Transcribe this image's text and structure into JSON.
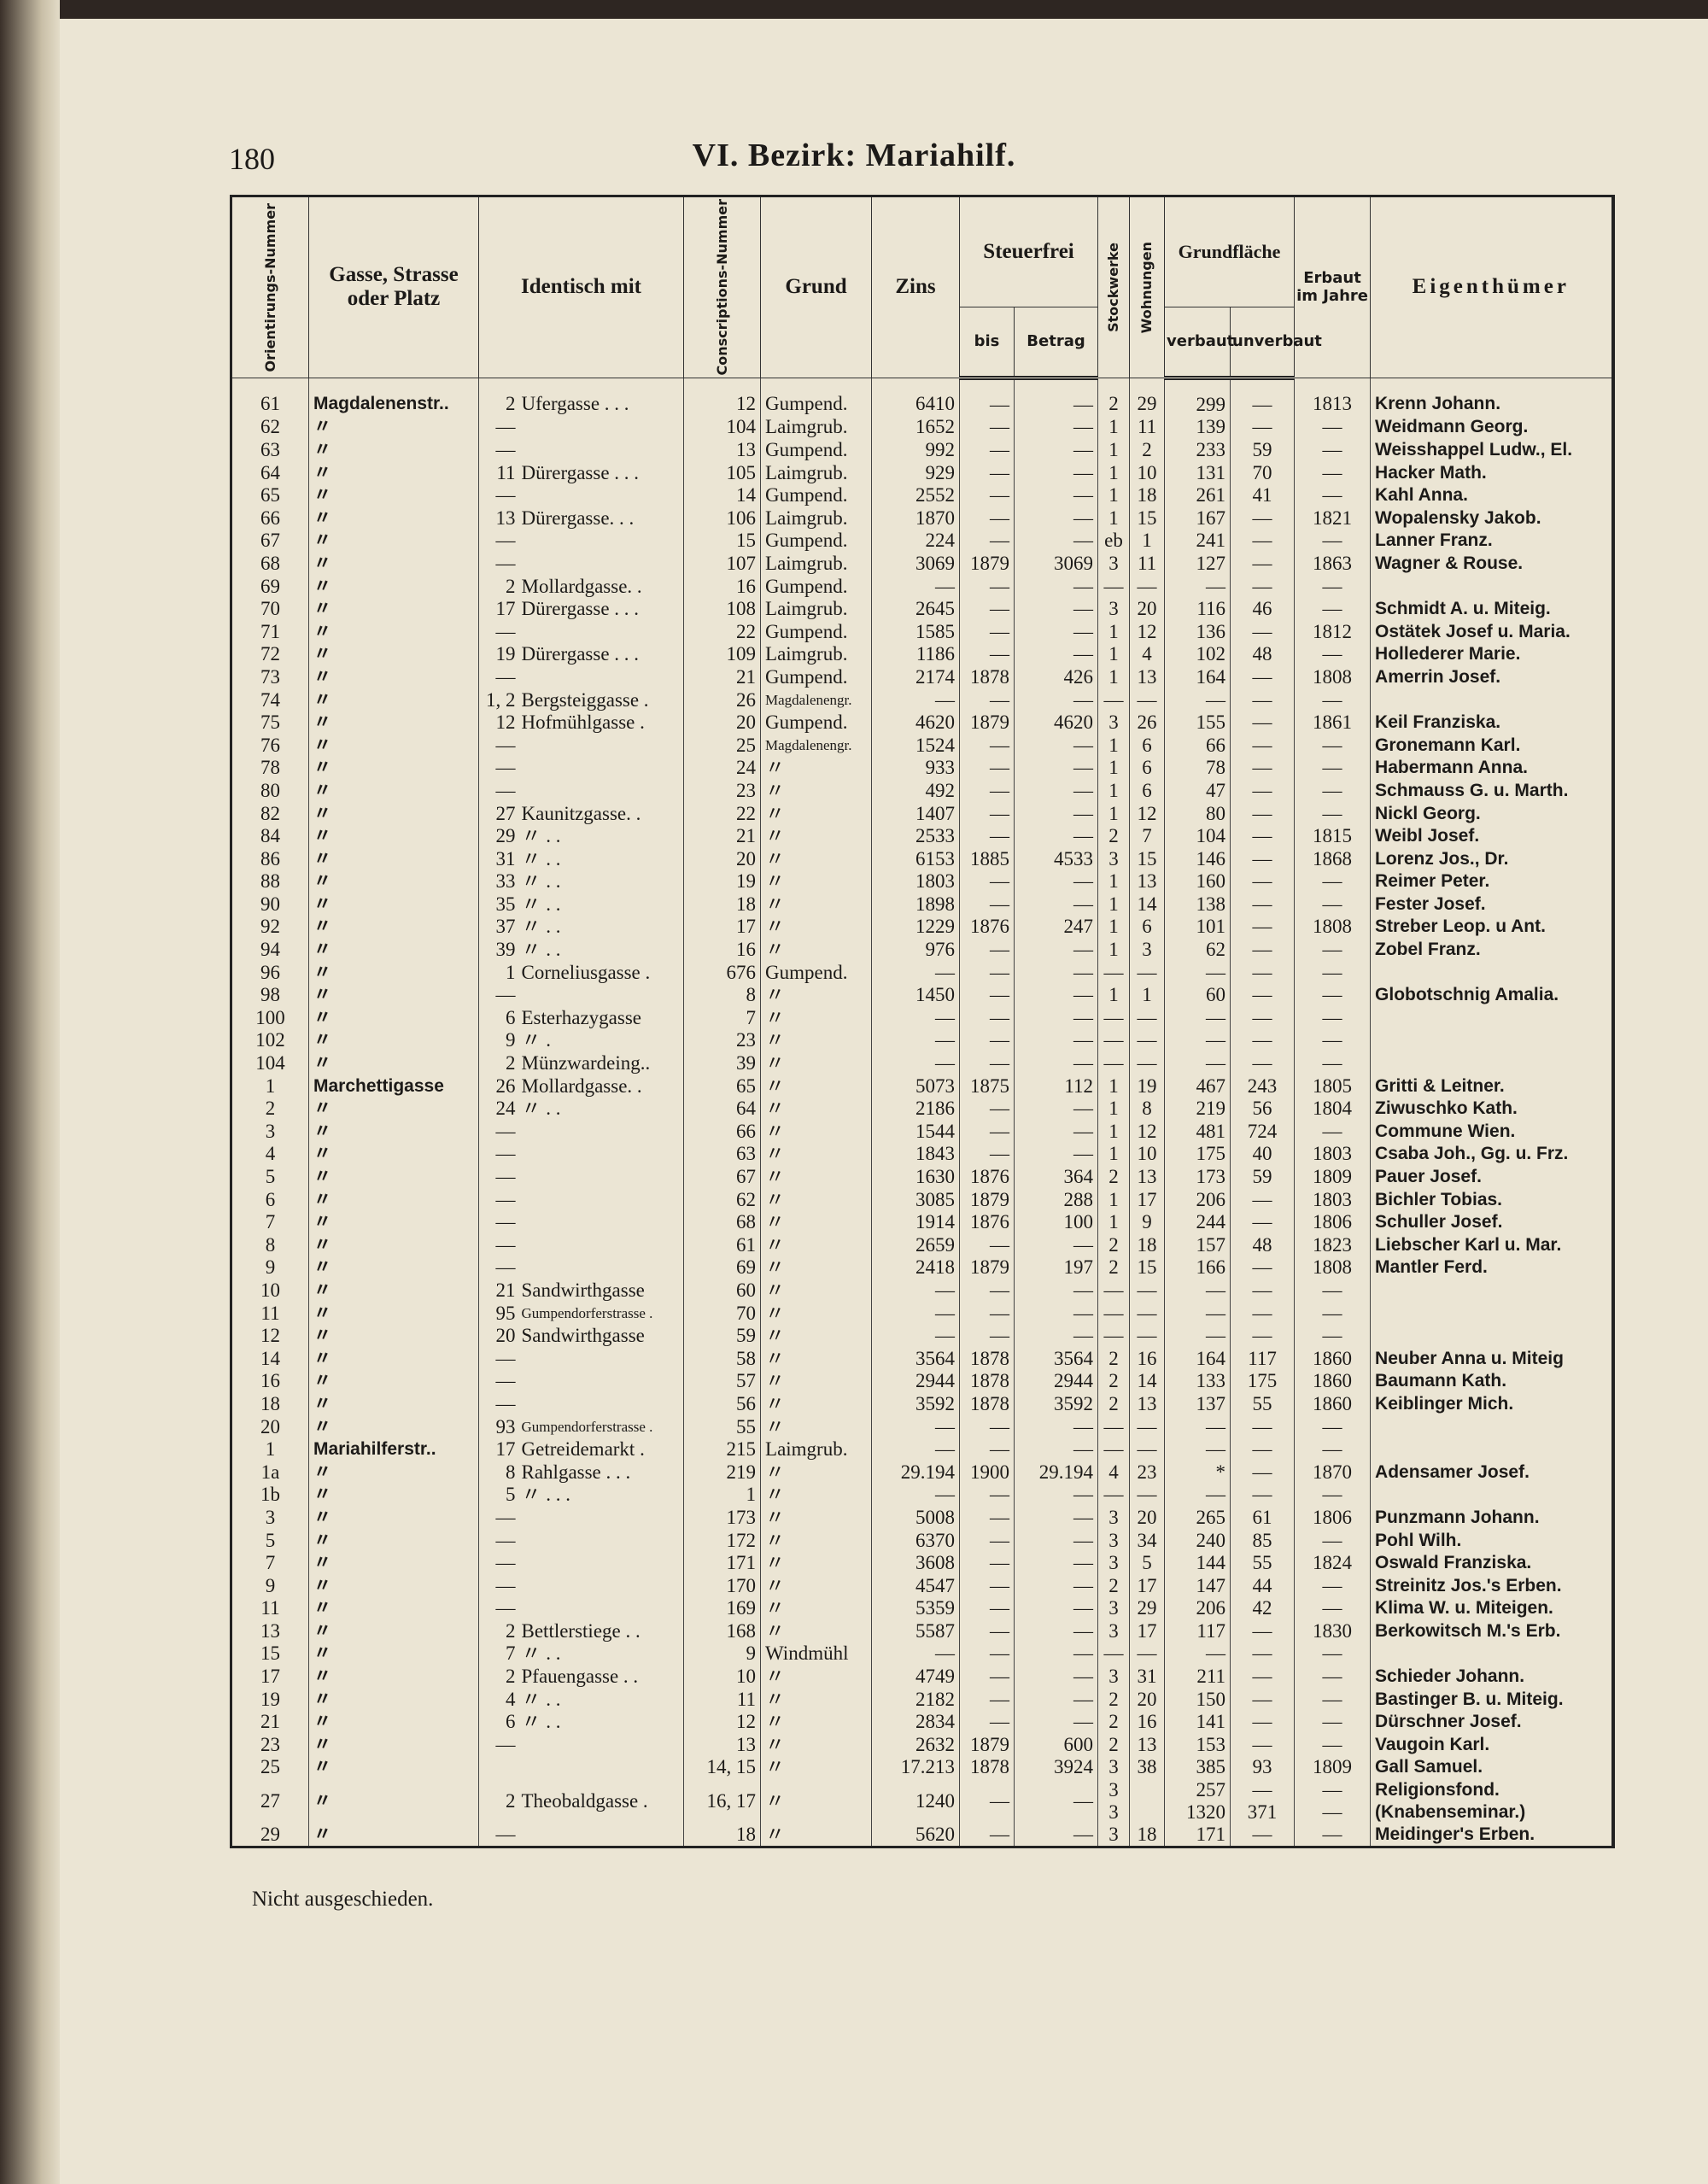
{
  "page_number": "180",
  "title": "VI. Bezirk: Mariahilf.",
  "header": {
    "orient": "Orientirungs-Nummer",
    "street": "Gasse, Strasse oder Platz",
    "identisch": "Identisch mit",
    "consc": "Conscriptions-Nummer",
    "grund": "Grund",
    "zins": "Zins",
    "steuerfrei": "Steuerfrei",
    "bis": "bis",
    "betrag": "Betrag",
    "stock": "Stockwerke",
    "wohn": "Wohnungen",
    "grundflaeche": "Grundfläche",
    "verbaut": "verbaut",
    "unverbaut": "unverbaut",
    "erbaut": "Erbaut im Jahre",
    "owner": "Eigenthümer"
  },
  "rows": [
    [
      "61",
      "Magdalenenstr..",
      "2",
      "Ufergasse . . .",
      "12",
      "Gumpend.",
      "6410",
      "—",
      "—",
      "2",
      "29",
      "299",
      "—",
      "1813",
      "Krenn Johann."
    ],
    [
      "62",
      "〃",
      "—",
      null,
      "104",
      "Laimgrub.",
      "1652",
      "—",
      "—",
      "1",
      "11",
      "139",
      "—",
      "—",
      "Weidmann Georg."
    ],
    [
      "63",
      "〃",
      "—",
      null,
      "13",
      "Gumpend.",
      "992",
      "—",
      "—",
      "1",
      "2",
      "233",
      "59",
      "—",
      "Weisshappel Ludw., El."
    ],
    [
      "64",
      "〃",
      "11",
      "Dürergasse . . .",
      "105",
      "Laimgrub.",
      "929",
      "—",
      "—",
      "1",
      "10",
      "131",
      "70",
      "—",
      "Hacker Math."
    ],
    [
      "65",
      "〃",
      "—",
      null,
      "14",
      "Gumpend.",
      "2552",
      "—",
      "—",
      "1",
      "18",
      "261",
      "41",
      "—",
      "Kahl Anna."
    ],
    [
      "66",
      "〃",
      "13",
      "Dürergasse. . .",
      "106",
      "Laimgrub.",
      "1870",
      "—",
      "—",
      "1",
      "15",
      "167",
      "—",
      "1821",
      "Wopalensky Jakob."
    ],
    [
      "67",
      "〃",
      "—",
      null,
      "15",
      "Gumpend.",
      "224",
      "—",
      "—",
      "eb",
      "1",
      "241",
      "—",
      "—",
      "Lanner Franz."
    ],
    [
      "68",
      "〃",
      "—",
      null,
      "107",
      "Laimgrub.",
      "3069",
      "1879",
      "3069",
      "3",
      "11",
      "127",
      "—",
      "1863",
      "Wagner & Rouse."
    ],
    [
      "69",
      "〃",
      "2",
      "Mollardgasse. .",
      "16",
      "Gumpend.",
      "—",
      "—",
      "—",
      "—",
      "—",
      "—",
      "—",
      "—",
      null
    ],
    [
      "70",
      "〃",
      "17",
      "Dürergasse . . .",
      "108",
      "Laimgrub.",
      "2645",
      "—",
      "—",
      "3",
      "20",
      "116",
      "46",
      "—",
      "Schmidt A. u. Miteig."
    ],
    [
      "71",
      "〃",
      "—",
      null,
      "22",
      "Gumpend.",
      "1585",
      "—",
      "—",
      "1",
      "12",
      "136",
      "—",
      "1812",
      "Ostätek Josef u. Maria."
    ],
    [
      "72",
      "〃",
      "19",
      "Dürergasse . . .",
      "109",
      "Laimgrub.",
      "1186",
      "—",
      "—",
      "1",
      "4",
      "102",
      "48",
      "—",
      "Hollederer Marie."
    ],
    [
      "73",
      "〃",
      "—",
      null,
      "21",
      "Gumpend.",
      "2174",
      "1878",
      "426",
      "1",
      "13",
      "164",
      "—",
      "1808",
      "Amerrin Josef."
    ],
    [
      "74",
      "〃",
      "1, 2",
      "Bergsteiggasse .",
      "26",
      "Magdalenengr.",
      "—",
      "—",
      "—",
      "—",
      "—",
      "—",
      "—",
      "—",
      null
    ],
    [
      "75",
      "〃",
      "12",
      "Hofmühlgasse .",
      "20",
      "Gumpend.",
      "4620",
      "1879",
      "4620",
      "3",
      "26",
      "155",
      "—",
      "1861",
      "Keil Franziska."
    ],
    [
      "76",
      "〃",
      "—",
      null,
      "25",
      "Magdalenengr.",
      "1524",
      "—",
      "—",
      "1",
      "6",
      "66",
      "—",
      "—",
      "Gronemann Karl."
    ],
    [
      "78",
      "〃",
      "—",
      null,
      "24",
      "〃",
      "933",
      "—",
      "—",
      "1",
      "6",
      "78",
      "—",
      "—",
      "Habermann Anna."
    ],
    [
      "80",
      "〃",
      "—",
      null,
      "23",
      "〃",
      "492",
      "—",
      "—",
      "1",
      "6",
      "47",
      "—",
      "—",
      "Schmauss G. u. Marth."
    ],
    [
      "82",
      "〃",
      "27",
      "Kaunitzgasse. .",
      "22",
      "〃",
      "1407",
      "—",
      "—",
      "1",
      "12",
      "80",
      "—",
      "—",
      "Nickl Georg."
    ],
    [
      "84",
      "〃",
      "29",
      "〃 . .",
      "21",
      "〃",
      "2533",
      "—",
      "—",
      "2",
      "7",
      "104",
      "—",
      "1815",
      "Weibl Josef."
    ],
    [
      "86",
      "〃",
      "31",
      "〃 . .",
      "20",
      "〃",
      "6153",
      "1885",
      "4533",
      "3",
      "15",
      "146",
      "—",
      "1868",
      "Lorenz Jos., Dr."
    ],
    [
      "88",
      "〃",
      "33",
      "〃 . .",
      "19",
      "〃",
      "1803",
      "—",
      "—",
      "1",
      "13",
      "160",
      "—",
      "—",
      "Reimer Peter."
    ],
    [
      "90",
      "〃",
      "35",
      "〃 . .",
      "18",
      "〃",
      "1898",
      "—",
      "—",
      "1",
      "14",
      "138",
      "—",
      "—",
      "Fester Josef."
    ],
    [
      "92",
      "〃",
      "37",
      "〃 . .",
      "17",
      "〃",
      "1229",
      "1876",
      "247",
      "1",
      "6",
      "101",
      "—",
      "1808",
      "Streber Leop. u Ant."
    ],
    [
      "94",
      "〃",
      "39",
      "〃 . .",
      "16",
      "〃",
      "976",
      "—",
      "—",
      "1",
      "3",
      "62",
      "—",
      "—",
      "Zobel Franz."
    ],
    [
      "96",
      "〃",
      "1",
      "Corneliusgasse .",
      "676",
      "Gumpend.",
      "—",
      "—",
      "—",
      "—",
      "—",
      "—",
      "—",
      "—",
      null
    ],
    [
      "98",
      "〃",
      "—",
      null,
      "8",
      "〃",
      "1450",
      "—",
      "—",
      "1",
      "1",
      "60",
      "—",
      "—",
      "Globotschnig Amalia."
    ],
    [
      "100",
      "〃",
      "6",
      "Esterhazygasse",
      "7",
      "〃",
      "—",
      "—",
      "—",
      "—",
      "—",
      "—",
      "—",
      "—",
      null
    ],
    [
      "102",
      "〃",
      "9",
      "〃 .",
      "23",
      "〃",
      "—",
      "—",
      "—",
      "—",
      "—",
      "—",
      "—",
      "—",
      null
    ],
    [
      "104",
      "〃",
      "2",
      "Münzwardeing..",
      "39",
      "〃",
      "—",
      "—",
      "—",
      "—",
      "—",
      "—",
      "—",
      "—",
      null
    ],
    [
      "1",
      "Marchettigasse",
      "26",
      "Mollardgasse. .",
      "65",
      "〃",
      "5073",
      "1875",
      "112",
      "1",
      "19",
      "467",
      "243",
      "1805",
      "Gritti & Leitner."
    ],
    [
      "2",
      "〃",
      "24",
      "〃 . .",
      "64",
      "〃",
      "2186",
      "—",
      "—",
      "1",
      "8",
      "219",
      "56",
      "1804",
      "Ziwuschko Kath."
    ],
    [
      "3",
      "〃",
      "—",
      null,
      "66",
      "〃",
      "1544",
      "—",
      "—",
      "1",
      "12",
      "481",
      "724",
      "—",
      "Commune Wien."
    ],
    [
      "4",
      "〃",
      "—",
      null,
      "63",
      "〃",
      "1843",
      "—",
      "—",
      "1",
      "10",
      "175",
      "40",
      "1803",
      "Csaba Joh., Gg. u. Frz."
    ],
    [
      "5",
      "〃",
      "—",
      null,
      "67",
      "〃",
      "1630",
      "1876",
      "364",
      "2",
      "13",
      "173",
      "59",
      "1809",
      "Pauer Josef."
    ],
    [
      "6",
      "〃",
      "—",
      null,
      "62",
      "〃",
      "3085",
      "1879",
      "288",
      "1",
      "17",
      "206",
      "—",
      "1803",
      "Bichler Tobias."
    ],
    [
      "7",
      "〃",
      "—",
      null,
      "68",
      "〃",
      "1914",
      "1876",
      "100",
      "1",
      "9",
      "244",
      "—",
      "1806",
      "Schuller Josef."
    ],
    [
      "8",
      "〃",
      "—",
      null,
      "61",
      "〃",
      "2659",
      "—",
      "—",
      "2",
      "18",
      "157",
      "48",
      "1823",
      "Liebscher Karl u. Mar."
    ],
    [
      "9",
      "〃",
      "—",
      null,
      "69",
      "〃",
      "2418",
      "1879",
      "197",
      "2",
      "15",
      "166",
      "—",
      "1808",
      "Mantler Ferd."
    ],
    [
      "10",
      "〃",
      "21",
      "Sandwirthgasse",
      "60",
      "〃",
      "—",
      "—",
      "—",
      "—",
      "—",
      "—",
      "—",
      "—",
      null
    ],
    [
      "11",
      "〃",
      "95",
      "Gumpendorferstrasse .",
      "70",
      "〃",
      "—",
      "—",
      "—",
      "—",
      "—",
      "—",
      "—",
      "—",
      null
    ],
    [
      "12",
      "〃",
      "20",
      "Sandwirthgasse",
      "59",
      "〃",
      "—",
      "—",
      "—",
      "—",
      "—",
      "—",
      "—",
      "—",
      null
    ],
    [
      "14",
      "〃",
      "—",
      null,
      "58",
      "〃",
      "3564",
      "1878",
      "3564",
      "2",
      "16",
      "164",
      "117",
      "1860",
      "Neuber Anna u. Miteig"
    ],
    [
      "16",
      "〃",
      "—",
      null,
      "57",
      "〃",
      "2944",
      "1878",
      "2944",
      "2",
      "14",
      "133",
      "175",
      "1860",
      "Baumann Kath."
    ],
    [
      "18",
      "〃",
      "—",
      null,
      "56",
      "〃",
      "3592",
      "1878",
      "3592",
      "2",
      "13",
      "137",
      "55",
      "1860",
      "Keiblinger Mich."
    ],
    [
      "20",
      "〃",
      "93",
      "Gumpendorferstrasse .",
      "55",
      "〃",
      "—",
      "—",
      "—",
      "—",
      "—",
      "—",
      "—",
      "—",
      null
    ],
    [
      "1",
      "Mariahilferstr..",
      "17",
      "Getreidemarkt .",
      "215",
      "Laimgrub.",
      "—",
      "—",
      "—",
      "—",
      "—",
      "—",
      "—",
      "—",
      null
    ],
    [
      "1a",
      "〃",
      "8",
      "Rahlgasse . . .",
      "219",
      "〃",
      "29.194",
      "1900",
      "29.194",
      "4",
      "23",
      "*",
      "—",
      "1870",
      "Adensamer Josef."
    ],
    [
      "1b",
      "〃",
      "5",
      "〃 . . .",
      "1",
      "〃",
      "—",
      "—",
      "—",
      "—",
      "—",
      "—",
      "—",
      "—",
      null
    ],
    [
      "3",
      "〃",
      "—",
      null,
      "173",
      "〃",
      "5008",
      "—",
      "—",
      "3",
      "20",
      "265",
      "61",
      "1806",
      "Punzmann Johann."
    ],
    [
      "5",
      "〃",
      "—",
      null,
      "172",
      "〃",
      "6370",
      "—",
      "—",
      "3",
      "34",
      "240",
      "85",
      "—",
      "Pohl Wilh."
    ],
    [
      "7",
      "〃",
      "—",
      null,
      "171",
      "〃",
      "3608",
      "—",
      "—",
      "3",
      "5",
      "144",
      "55",
      "1824",
      "Oswald Franziska."
    ],
    [
      "9",
      "〃",
      "—",
      null,
      "170",
      "〃",
      "4547",
      "—",
      "—",
      "2",
      "17",
      "147",
      "44",
      "—",
      "Streinitz Jos.'s Erben."
    ],
    [
      "11",
      "〃",
      "—",
      null,
      "169",
      "〃",
      "5359",
      "—",
      "—",
      "3",
      "29",
      "206",
      "42",
      "—",
      "Klima W. u. Miteigen."
    ],
    [
      "13",
      "〃",
      "2",
      "Bettlerstiege . .",
      "168",
      "〃",
      "5587",
      "—",
      "—",
      "3",
      "17",
      "117",
      "—",
      "1830",
      "Berkowitsch M.'s Erb."
    ],
    [
      "15",
      "〃",
      "7",
      "〃 . .",
      "9",
      "Windmühl",
      "—",
      "—",
      "—",
      "—",
      "—",
      "—",
      "—",
      "—",
      null
    ],
    [
      "17",
      "〃",
      "2",
      "Pfauengasse . .",
      "10",
      "〃",
      "4749",
      "—",
      "—",
      "3",
      "31",
      "211",
      "—",
      "—",
      "Schieder Johann."
    ],
    [
      "19",
      "〃",
      "4",
      "〃 . .",
      "11",
      "〃",
      "2182",
      "—",
      "—",
      "2",
      "20",
      "150",
      "—",
      "—",
      "Bastinger B. u. Miteig."
    ],
    [
      "21",
      "〃",
      "6",
      "〃 . .",
      "12",
      "〃",
      "2834",
      "—",
      "—",
      "2",
      "16",
      "141",
      "—",
      "—",
      "Dürschner Josef."
    ],
    [
      "23",
      "〃",
      "—",
      null,
      "13",
      "〃",
      "2632",
      "1879",
      "600",
      "2",
      "13",
      "153",
      "—",
      "—",
      "Vaugoin Karl."
    ],
    [
      "25",
      "〃",
      null,
      null,
      "14, 15",
      "〃",
      "17.213",
      "1878",
      "3924",
      "3",
      "38",
      "385",
      "93",
      "1809",
      "Gall Samuel."
    ],
    [
      "27",
      "〃",
      "2",
      "Theobaldgasse .",
      "16, 17",
      "〃",
      "1240",
      "—",
      "—",
      "3\n3",
      null,
      "257\n1320",
      "—\n371",
      "—\n—",
      "Religionsfond.\n(Knabenseminar.)"
    ],
    [
      "29",
      "〃",
      "—",
      null,
      "18",
      "〃",
      "5620",
      "—",
      "—",
      "3",
      "18",
      "171",
      "—",
      "—",
      "Meidinger's Erben."
    ]
  ],
  "footnote": "Nicht ausgeschieden."
}
